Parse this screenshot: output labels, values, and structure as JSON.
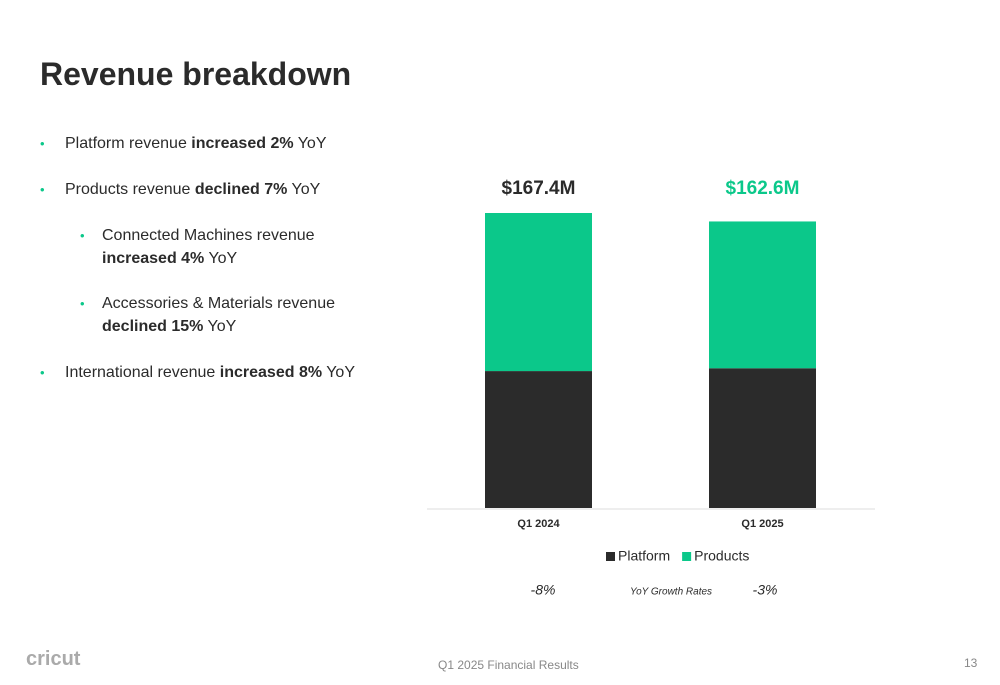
{
  "header": {
    "title": "Revenue breakdown"
  },
  "bullets": [
    {
      "level": 1,
      "parts": [
        {
          "text": "Platform revenue "
        },
        {
          "text": "increased 2%",
          "bold": true
        },
        {
          "text": " YoY"
        }
      ]
    },
    {
      "level": 1,
      "parts": [
        {
          "text": "Products revenue "
        },
        {
          "text": "declined 7%",
          "bold": true
        },
        {
          "text": " YoY"
        }
      ]
    },
    {
      "level": 2,
      "parts": [
        {
          "text": "Connected Machines revenue "
        },
        {
          "text": "increased 4%",
          "bold": true
        },
        {
          "text": " YoY"
        }
      ]
    },
    {
      "level": 2,
      "parts": [
        {
          "text": "Accessories & Materials revenue "
        },
        {
          "text": "declined 15%",
          "bold": true
        },
        {
          "text": " YoY"
        }
      ]
    },
    {
      "level": 1,
      "parts": [
        {
          "text": "International revenue "
        },
        {
          "text": "increased 8%",
          "bold": true
        },
        {
          "text": " YoY"
        }
      ]
    }
  ],
  "chart_data": {
    "type": "stacked-bar",
    "categories": [
      "Q1 2024",
      "Q1 2025"
    ],
    "series": [
      {
        "name": "Platform",
        "color": "#2b2b2b",
        "values": [
          77.7,
          79.3
        ]
      },
      {
        "name": "Products",
        "color": "#0bc88a",
        "values": [
          89.7,
          83.3
        ]
      }
    ],
    "totals": {
      "values": [
        167.4,
        162.6
      ],
      "value_labels": [
        "$167.4M",
        "$162.6M"
      ],
      "colors": [
        "#2b2b2b",
        "#0bc88a"
      ]
    },
    "growth": {
      "label": "YoY Growth Rates",
      "values": [
        -8,
        -3
      ],
      "value_labels": [
        "-8%",
        "-3%"
      ]
    }
  },
  "footer": {
    "logo": "cricut",
    "center": "Q1 2025 Financial Results",
    "page": "13"
  }
}
